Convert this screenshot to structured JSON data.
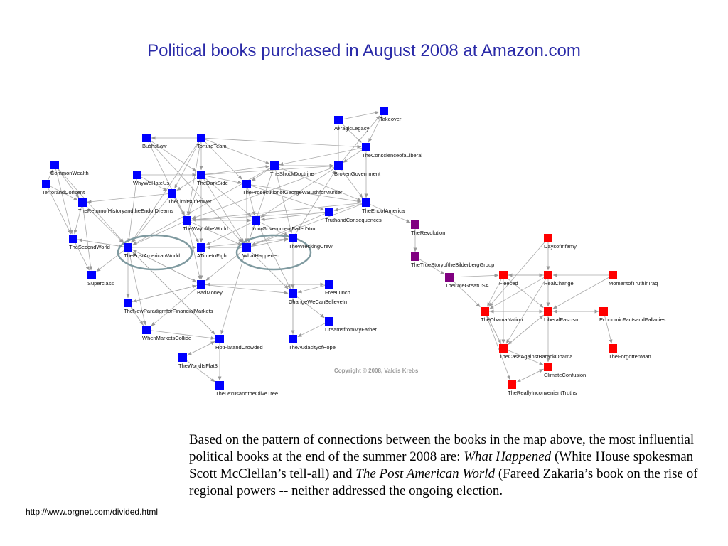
{
  "title": "Political books purchased in August 2008 at Amazon.com",
  "copyright": "Copyright © 2008, Valdis Krebs",
  "url": "http://www.orgnet.com/divided.html",
  "caption": {
    "part1": "Based on the pattern of connections between the books in the map above, the most influential political books at the end of the summer 2008 are: ",
    "book1": "What Happened",
    "part2": " (White House spokesman Scott McClellan’s tell-all) and ",
    "book2": "The Post American World",
    "part3": "  (Fareed Zakaria’s book on the rise of regional powers -- neither addressed the ongoing election."
  },
  "colors": {
    "liberal": "#0000ff",
    "neutral": "#800080",
    "conservative": "#ff0000",
    "edge": "#aaaaaa",
    "highlight": "#7f9aa0"
  },
  "highlighted": [
    "ThePostAmericanWorld",
    "WhatHappened"
  ],
  "nodes": [
    {
      "id": "Takeover",
      "group": "liberal"
    },
    {
      "id": "ATragicLegacy",
      "group": "liberal"
    },
    {
      "id": "BushsLaw",
      "group": "liberal"
    },
    {
      "id": "TortureTeam",
      "group": "liberal"
    },
    {
      "id": "TheConscienceofaLiberal",
      "group": "liberal"
    },
    {
      "id": "CommonWealth",
      "group": "liberal"
    },
    {
      "id": "WhyWeHateUs",
      "group": "liberal"
    },
    {
      "id": "TheDarkSide",
      "group": "liberal"
    },
    {
      "id": "TheShockDoctrine",
      "group": "liberal"
    },
    {
      "id": "BrokenGovernment",
      "group": "liberal"
    },
    {
      "id": "TerrorandConsent",
      "group": "liberal"
    },
    {
      "id": "TheLimitsOfPower",
      "group": "liberal"
    },
    {
      "id": "TheProsecutionofGeorgeWBushforMurder",
      "group": "liberal"
    },
    {
      "id": "TheReturnofHistoryandtheEndofDreams",
      "group": "liberal"
    },
    {
      "id": "TheEndofAmerica",
      "group": "liberal"
    },
    {
      "id": "TruthandConsequences",
      "group": "liberal"
    },
    {
      "id": "TheWayoftheWorld",
      "group": "liberal"
    },
    {
      "id": "YourGovernmentFailedYou",
      "group": "liberal"
    },
    {
      "id": "TheSecondWorld",
      "group": "liberal"
    },
    {
      "id": "ThePostAmericanWorld",
      "group": "liberal"
    },
    {
      "id": "ATimetoFight",
      "group": "liberal"
    },
    {
      "id": "WhatHappened",
      "group": "liberal"
    },
    {
      "id": "TheWreckingCrew",
      "group": "liberal"
    },
    {
      "id": "Superclass",
      "group": "liberal"
    },
    {
      "id": "BadMoney",
      "group": "liberal"
    },
    {
      "id": "FreeLunch",
      "group": "liberal"
    },
    {
      "id": "ChangeWeCanBelieveIn",
      "group": "liberal"
    },
    {
      "id": "TheNewParadigmforFinancialMarkets",
      "group": "liberal"
    },
    {
      "id": "DreamsfromMyFather",
      "group": "liberal"
    },
    {
      "id": "WhenMarketsCollide",
      "group": "liberal"
    },
    {
      "id": "HotFlatandCrowded",
      "group": "liberal"
    },
    {
      "id": "TheAudacityofHope",
      "group": "liberal"
    },
    {
      "id": "TheWorldIsFlat3",
      "group": "liberal"
    },
    {
      "id": "TheLexusandtheOliveTree",
      "group": "liberal"
    },
    {
      "id": "TheRevolution",
      "group": "neutral"
    },
    {
      "id": "TheTrueStoryoftheBilderbergGroup",
      "group": "neutral"
    },
    {
      "id": "TheLateGreatUSA",
      "group": "neutral"
    },
    {
      "id": "DaysofInfamy",
      "group": "conservative"
    },
    {
      "id": "Fleeced",
      "group": "conservative"
    },
    {
      "id": "RealChange",
      "group": "conservative"
    },
    {
      "id": "MomentofTruthinIraq",
      "group": "conservative"
    },
    {
      "id": "TheObamaNation",
      "group": "conservative"
    },
    {
      "id": "LiberalFascism",
      "group": "conservative"
    },
    {
      "id": "EconomicFactsandFallacies",
      "group": "conservative"
    },
    {
      "id": "TheCaseAgainstBarackObama",
      "group": "conservative"
    },
    {
      "id": "TheForgottenMan",
      "group": "conservative"
    },
    {
      "id": "ClimateConfusion",
      "group": "conservative"
    },
    {
      "id": "TheReallyInconvenientTruths",
      "group": "conservative"
    }
  ],
  "edges": [
    [
      "ATragicLegacy",
      "Takeover"
    ],
    [
      "ATragicLegacy",
      "TheConscienceofaLiberal"
    ],
    [
      "Takeover",
      "TheConscienceofaLiberal"
    ],
    [
      "TortureTeam",
      "BushsLaw"
    ],
    [
      "TortureTeam",
      "TheDarkSide"
    ],
    [
      "TortureTeam",
      "TheConscienceofaLiberal"
    ],
    [
      "TortureTeam",
      "TheShockDoctrine"
    ],
    [
      "TortureTeam",
      "TheLimitsOfPower"
    ],
    [
      "TortureTeam",
      "TheWayoftheWorld"
    ],
    [
      "TortureTeam",
      "ThePostAmericanWorld"
    ],
    [
      "TortureTeam",
      "TheProsecutionofGeorgeWBushforMurder"
    ],
    [
      "BushsLaw",
      "TheWayoftheWorld"
    ],
    [
      "BushsLaw",
      "TheDarkSide"
    ],
    [
      "BushsLaw",
      "WhatHappened"
    ],
    [
      "TheConscienceofaLiberal",
      "BrokenGovernment"
    ],
    [
      "TheConscienceofaLiberal",
      "TheEndofAmerica"
    ],
    [
      "TheConscienceofaLiberal",
      "TheShockDoctrine"
    ],
    [
      "CommonWealth",
      "TheSecondWorld"
    ],
    [
      "CommonWealth",
      "TheReturnofHistoryandtheEndofDreams"
    ],
    [
      "CommonWealth",
      "ThePostAmericanWorld"
    ],
    [
      "TerrorandConsent",
      "TheSecondWorld"
    ],
    [
      "TerrorandConsent",
      "TheReturnofHistoryandtheEndofDreams"
    ],
    [
      "TerrorandConsent",
      "CommonWealth"
    ],
    [
      "WhyWeHateUs",
      "TheDarkSide"
    ],
    [
      "WhyWeHateUs",
      "ThePostAmericanWorld"
    ],
    [
      "WhyWeHateUs",
      "TheLimitsOfPower"
    ],
    [
      "TheDarkSide",
      "TheShockDoctrine"
    ],
    [
      "TheDarkSide",
      "TheLimitsOfPower"
    ],
    [
      "TheDarkSide",
      "TheWayoftheWorld"
    ],
    [
      "TheDarkSide",
      "ATimetoFight"
    ],
    [
      "TheDarkSide",
      "WhatHappened"
    ],
    [
      "TheDarkSide",
      "TheProsecutionofGeorgeWBushforMurder"
    ],
    [
      "TheDarkSide",
      "BrokenGovernment"
    ],
    [
      "TheDarkSide",
      "YourGovernmentFailedYou"
    ],
    [
      "TheShockDoctrine",
      "BrokenGovernment"
    ],
    [
      "TheShockDoctrine",
      "TheEndofAmerica"
    ],
    [
      "TheShockDoctrine",
      "WhatHappened"
    ],
    [
      "TheShockDoctrine",
      "TheWreckingCrew"
    ],
    [
      "TheShockDoctrine",
      "ThePostAmericanWorld"
    ],
    [
      "TheShockDoctrine",
      "TheProsecutionofGeorgeWBushforMurder"
    ],
    [
      "BrokenGovernment",
      "TheEndofAmerica"
    ],
    [
      "BrokenGovernment",
      "TheWayoftheWorld"
    ],
    [
      "BrokenGovernment",
      "YourGovernmentFailedYou"
    ],
    [
      "BrokenGovernment",
      "ATragicLegacy"
    ],
    [
      "BrokenGovernment",
      "Takeover"
    ],
    [
      "TheLimitsOfPower",
      "ThePostAmericanWorld"
    ],
    [
      "TheLimitsOfPower",
      "TheWayoftheWorld"
    ],
    [
      "TheLimitsOfPower",
      "TheReturnofHistoryandtheEndofDreams"
    ],
    [
      "TheLimitsOfPower",
      "ATimetoFight"
    ],
    [
      "TheProsecutionofGeorgeWBushforMurder",
      "WhatHappened"
    ],
    [
      "TheProsecutionofGeorgeWBushforMurder",
      "TheEndofAmerica"
    ],
    [
      "TheProsecutionofGeorgeWBushforMurder",
      "TruthandConsequences"
    ],
    [
      "TheProsecutionofGeorgeWBushforMurder",
      "YourGovernmentFailedYou"
    ],
    [
      "TheReturnofHistoryandtheEndofDreams",
      "ThePostAmericanWorld"
    ],
    [
      "TheReturnofHistoryandtheEndofDreams",
      "TheSecondWorld"
    ],
    [
      "TheReturnofHistoryandtheEndofDreams",
      "Superclass"
    ],
    [
      "TheEndofAmerica",
      "TruthandConsequences"
    ],
    [
      "TheEndofAmerica",
      "WhatHappened"
    ],
    [
      "TheEndofAmerica",
      "TheWayoftheWorld"
    ],
    [
      "TruthandConsequences",
      "WhatHappened"
    ],
    [
      "TruthandConsequences",
      "YourGovernmentFailedYou"
    ],
    [
      "TruthandConsequences",
      "TheWayoftheWorld"
    ],
    [
      "TheWayoftheWorld",
      "ThePostAmericanWorld"
    ],
    [
      "TheWayoftheWorld",
      "ATimetoFight"
    ],
    [
      "TheWayoftheWorld",
      "WhatHappened"
    ],
    [
      "TheWayoftheWorld",
      "YourGovernmentFailedYou"
    ],
    [
      "TheWayoftheWorld",
      "BadMoney"
    ],
    [
      "YourGovernmentFailedYou",
      "WhatHappened"
    ],
    [
      "YourGovernmentFailedYou",
      "ATimetoFight"
    ],
    [
      "YourGovernmentFailedYou",
      "TheWreckingCrew"
    ],
    [
      "YourGovernmentFailedYou",
      "ChangeWeCanBelieveIn"
    ],
    [
      "TheSecondWorld",
      "ThePostAmericanWorld"
    ],
    [
      "TheSecondWorld",
      "Superclass"
    ],
    [
      "ThePostAmericanWorld",
      "ATimetoFight"
    ],
    [
      "ThePostAmericanWorld",
      "Superclass"
    ],
    [
      "ThePostAmericanWorld",
      "TheNewParadigmforFinancialMarkets"
    ],
    [
      "ThePostAmericanWorld",
      "BadMoney"
    ],
    [
      "ThePostAmericanWorld",
      "WhenMarketsCollide"
    ],
    [
      "ThePostAmericanWorld",
      "HotFlatandCrowded"
    ],
    [
      "ThePostAmericanWorld",
      "TheSecondWorld"
    ],
    [
      "ATimetoFight",
      "WhatHappened"
    ],
    [
      "ATimetoFight",
      "BadMoney"
    ],
    [
      "ATimetoFight",
      "TheWreckingCrew"
    ],
    [
      "WhatHappened",
      "TheWreckingCrew"
    ],
    [
      "WhatHappened",
      "ChangeWeCanBelieveIn"
    ],
    [
      "WhatHappened",
      "BadMoney"
    ],
    [
      "WhatHappened",
      "ATimetoFight"
    ],
    [
      "WhatHappened",
      "HotFlatandCrowded"
    ],
    [
      "TheWreckingCrew",
      "ChangeWeCanBelieveIn"
    ],
    [
      "TheWreckingCrew",
      "BrokenGovernment"
    ],
    [
      "BadMoney",
      "TheNewParadigmforFinancialMarkets"
    ],
    [
      "BadMoney",
      "ChangeWeCanBelieveIn"
    ],
    [
      "BadMoney",
      "FreeLunch"
    ],
    [
      "BadMoney",
      "WhenMarketsCollide"
    ],
    [
      "BadMoney",
      "ThePostAmericanWorld"
    ],
    [
      "FreeLunch",
      "ChangeWeCanBelieveIn"
    ],
    [
      "FreeLunch",
      "BadMoney"
    ],
    [
      "ChangeWeCanBelieveIn",
      "DreamsfromMyFather"
    ],
    [
      "ChangeWeCanBelieveIn",
      "TheAudacityofHope"
    ],
    [
      "DreamsfromMyFather",
      "TheAudacityofHope"
    ],
    [
      "TheAudacityofHope",
      "ChangeWeCanBelieveIn"
    ],
    [
      "TheNewParadigmforFinancialMarkets",
      "WhenMarketsCollide"
    ],
    [
      "TheNewParadigmforFinancialMarkets",
      "BadMoney"
    ],
    [
      "WhenMarketsCollide",
      "HotFlatandCrowded"
    ],
    [
      "WhenMarketsCollide",
      "TheNewParadigmforFinancialMarkets"
    ],
    [
      "HotFlatandCrowded",
      "TheWorldIsFlat3"
    ],
    [
      "HotFlatandCrowded",
      "TheLexusandtheOliveTree"
    ],
    [
      "HotFlatandCrowded",
      "ThePostAmericanWorld"
    ],
    [
      "TheWorldIsFlat3",
      "TheLexusandtheOliveTree"
    ],
    [
      "TheWorldIsFlat3",
      "HotFlatandCrowded"
    ],
    [
      "TheEndofAmerica",
      "TheRevolution"
    ],
    [
      "TheRevolution",
      "TheTrueStoryoftheBilderbergGroup"
    ],
    [
      "TheTrueStoryoftheBilderbergGroup",
      "TheLateGreatUSA"
    ],
    [
      "TheLateGreatUSA",
      "TheObamaNation"
    ],
    [
      "TheLateGreatUSA",
      "Fleeced"
    ],
    [
      "DaysofInfamy",
      "TheObamaNation"
    ],
    [
      "DaysofInfamy",
      "RealChange"
    ],
    [
      "Fleeced",
      "RealChange"
    ],
    [
      "Fleeced",
      "TheObamaNation"
    ],
    [
      "Fleeced",
      "LiberalFascism"
    ],
    [
      "Fleeced",
      "TheCaseAgainstBarackObama"
    ],
    [
      "RealChange",
      "LiberalFascism"
    ],
    [
      "RealChange",
      "TheObamaNation"
    ],
    [
      "RealChange",
      "Fleeced"
    ],
    [
      "RealChange",
      "TheCaseAgainstBarackObama"
    ],
    [
      "MomentofTruthinIraq",
      "LiberalFascism"
    ],
    [
      "MomentofTruthinIraq",
      "RealChange"
    ],
    [
      "TheObamaNation",
      "TheCaseAgainstBarackObama"
    ],
    [
      "TheObamaNation",
      "LiberalFascism"
    ],
    [
      "TheObamaNation",
      "TheReallyInconvenientTruths"
    ],
    [
      "LiberalFascism",
      "EconomicFactsandFallacies"
    ],
    [
      "LiberalFascism",
      "TheCaseAgainstBarackObama"
    ],
    [
      "LiberalFascism",
      "ClimateConfusion"
    ],
    [
      "LiberalFascism",
      "TheObamaNation"
    ],
    [
      "EconomicFactsandFallacies",
      "TheForgottenMan"
    ],
    [
      "EconomicFactsandFallacies",
      "LiberalFascism"
    ],
    [
      "TheCaseAgainstBarackObama",
      "TheObamaNation"
    ],
    [
      "TheCaseAgainstBarackObama",
      "LiberalFascism"
    ],
    [
      "TheCaseAgainstBarackObama",
      "ClimateConfusion"
    ],
    [
      "ClimateConfusion",
      "TheReallyInconvenientTruths"
    ],
    [
      "TheReallyInconvenientTruths",
      "ClimateConfusion"
    ]
  ]
}
